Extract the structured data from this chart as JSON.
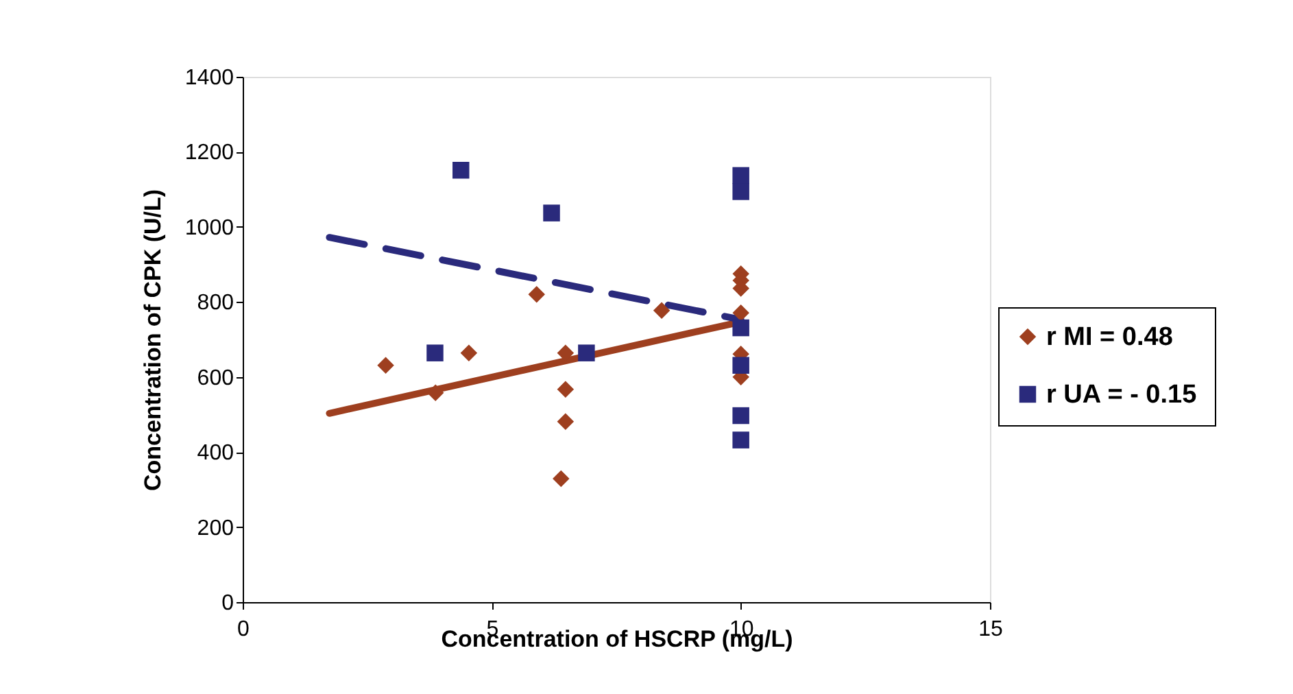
{
  "chart_data": {
    "type": "scatter",
    "xlabel": "Concentration  of HSCRP (mg/L)",
    "ylabel": "Concentration  of CPK (U/L)",
    "xlim": [
      0,
      15
    ],
    "xticks": [
      0,
      5,
      10,
      15
    ],
    "ylim": [
      0,
      1400
    ],
    "yticks": [
      0,
      200,
      400,
      600,
      800,
      1000,
      1200,
      1400
    ],
    "grid": false,
    "legend": "right",
    "series": [
      {
        "type": "scatter",
        "name": "r MI = 0.48",
        "color": "#9e3f1f",
        "marker": "diamond",
        "x": [
          2.87,
          3.87,
          4.54,
          5.9,
          6.48,
          6.48,
          6.48,
          6.39,
          8.41,
          10,
          10,
          10,
          10,
          10,
          10
        ],
        "values": [
          631,
          558,
          664,
          820,
          664,
          567,
          481,
          329,
          777,
          875,
          857,
          836,
          771,
          661,
          600
        ]
      },
      {
        "type": "scatter",
        "name": "r UA = - 0.15",
        "color": "#2a2a7c",
        "marker": "square",
        "x": [
          4.38,
          6.2,
          3.86,
          6.9,
          10,
          10,
          10,
          10,
          10,
          10
        ],
        "values": [
          1151,
          1037,
          664,
          664,
          1137,
          1094,
          731,
          631,
          497,
          432
        ]
      },
      {
        "type": "line",
        "color": "#9e3f1f",
        "line_style": "solid",
        "x": [
          1.74,
          10
        ],
        "values": [
          503,
          747
        ]
      },
      {
        "type": "line",
        "color": "#2a2a7c",
        "line_style": "dashed",
        "x": [
          1.74,
          10
        ],
        "values": [
          972,
          753
        ]
      }
    ]
  }
}
